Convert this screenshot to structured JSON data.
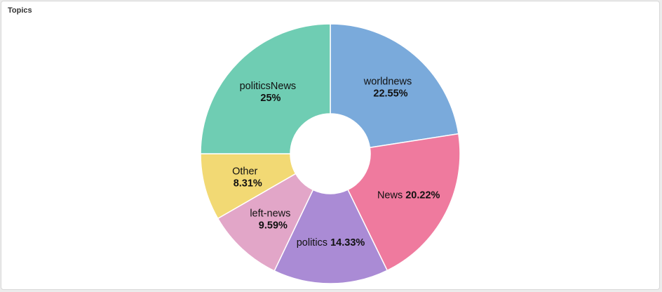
{
  "panel": {
    "title": "Topics"
  },
  "chart_data": {
    "type": "pie",
    "donut": true,
    "title": "Topics",
    "slices": [
      {
        "label": "worldnews",
        "value": 22.55,
        "display": "22.55%",
        "color": "#7aaadb",
        "layout": "stacked"
      },
      {
        "label": "News",
        "value": 20.22,
        "display": "20.22%",
        "color": "#ef7a9e",
        "layout": "inline"
      },
      {
        "label": "politics",
        "value": 14.33,
        "display": "14.33%",
        "color": "#aa8bd5",
        "layout": "inline"
      },
      {
        "label": "left-news",
        "value": 9.59,
        "display": "9.59%",
        "color": "#e2a6c8",
        "layout": "stacked"
      },
      {
        "label": "Other",
        "value": 8.31,
        "display": "8.31%",
        "color": "#f2d974",
        "layout": "stacked"
      },
      {
        "label": "politicsNews",
        "value": 25,
        "display": "25%",
        "color": "#6fcdb3",
        "layout": "stacked"
      }
    ],
    "start_angle": "top",
    "direction": "clockwise"
  }
}
